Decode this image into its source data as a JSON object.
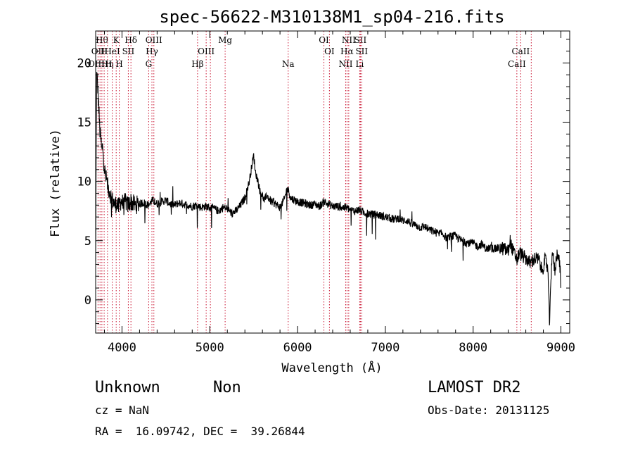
{
  "chart_data": {
    "type": "line",
    "title": "spec-56622-M310138M1_sp04-216.fits",
    "xlabel": "Wavelength (Å)",
    "ylabel": "Flux (relative)",
    "xlim": [
      3700,
      9100
    ],
    "ylim": [
      -2.8,
      22.7
    ],
    "xticks": [
      4000,
      5000,
      6000,
      7000,
      8000,
      9000
    ],
    "yticks": [
      0,
      5,
      10,
      15,
      20
    ],
    "grid": false,
    "series": [
      {
        "x": [
          3700,
          3710,
          3720,
          3730,
          3740,
          3750,
          3760,
          3770,
          3780,
          3790,
          3800,
          3820,
          3840,
          3860,
          3880,
          3900,
          3920,
          3940,
          3960,
          3980,
          4000,
          4020,
          4040,
          4060,
          4080,
          4100,
          4150,
          4200,
          4250,
          4300,
          4350,
          4400,
          4450,
          4500,
          4550,
          4600,
          4650,
          4700,
          4750,
          4800,
          4850,
          4900,
          4950,
          5000,
          5050,
          5100,
          5150,
          5200,
          5250,
          5300,
          5350,
          5400,
          5450,
          5480,
          5500,
          5520,
          5550,
          5570,
          5600,
          5620,
          5650,
          5700,
          5750,
          5800,
          5850,
          5880,
          5900,
          5920,
          5950,
          6000,
          6050,
          6100,
          6150,
          6200,
          6250,
          6300,
          6350,
          6400,
          6450,
          6500,
          6550,
          6600,
          6650,
          6700,
          6750,
          6800,
          6850,
          6900,
          6950,
          7000,
          7050,
          7100,
          7150,
          7200,
          7250,
          7300,
          7350,
          7400,
          7450,
          7500,
          7550,
          7600,
          7650,
          7700,
          7750,
          7800,
          7850,
          7900,
          7950,
          8000,
          8050,
          8100,
          8150,
          8200,
          8250,
          8300,
          8350,
          8400,
          8420,
          8450,
          8500,
          8530,
          8550,
          8600,
          8650,
          8700,
          8750,
          8780,
          8800,
          8820,
          8850,
          8870,
          8900,
          8930,
          8960,
          8990,
          9000
        ],
        "y": [
          3,
          19,
          18.5,
          17,
          15.5,
          14,
          13.5,
          12.5,
          13,
          12,
          11,
          10.2,
          9.5,
          9.2,
          8.5,
          8.3,
          8,
          8.2,
          7.8,
          8.3,
          8.3,
          7.9,
          8.4,
          8,
          8.1,
          8.3,
          8,
          8.1,
          8.2,
          8,
          8.4,
          8.1,
          8.3,
          8.4,
          8.1,
          8,
          8.2,
          8.1,
          8,
          7.9,
          8,
          7.8,
          7.9,
          7.8,
          7.7,
          7.5,
          7.8,
          7.7,
          7.3,
          7.5,
          8,
          8.6,
          10,
          11.4,
          12.2,
          10.8,
          10,
          9.2,
          8.8,
          8.4,
          8.8,
          8.3,
          8.1,
          7.8,
          8.5,
          9.4,
          9.2,
          8.6,
          8.5,
          8.3,
          8.2,
          8.1,
          8,
          8.1,
          7.9,
          8.3,
          8.1,
          7.9,
          7.9,
          7.8,
          7.8,
          7.6,
          7.5,
          7.6,
          7.4,
          7.3,
          7.2,
          7.2,
          7.1,
          7,
          6.9,
          6.8,
          6.9,
          6.7,
          6.7,
          6.4,
          6.3,
          6.1,
          6.2,
          5.9,
          5.8,
          5.6,
          5.6,
          5.2,
          5.4,
          5.4,
          5.1,
          4.9,
          4.8,
          4.8,
          4.5,
          4.7,
          4.3,
          4.4,
          4.3,
          4.4,
          4.3,
          4.1,
          5,
          4.2,
          3.4,
          4,
          3.8,
          3.5,
          3.1,
          3.5,
          3.4,
          2.5,
          2.8,
          3.4,
          2.8,
          -2,
          4.3,
          2.4,
          4.2,
          2.8,
          0.3
        ]
      }
    ],
    "line_markers": [
      {
        "wl": 3727,
        "row": 1,
        "label": "OII"
      },
      {
        "wl": 3750,
        "row": 2,
        "label": "OIIIH"
      },
      {
        "wl": 3771,
        "row": 0,
        "label": "Hθ"
      },
      {
        "wl": 3797,
        "row": 1,
        "label": "H"
      },
      {
        "wl": 3835,
        "row": 2,
        "label": "Hη"
      },
      {
        "wl": 3889,
        "row": 1,
        "label": "HeI"
      },
      {
        "wl": 3934,
        "row": 0,
        "label": "K"
      },
      {
        "wl": 3969,
        "row": 2,
        "label": "H"
      },
      {
        "wl": 4072,
        "row": 1,
        "label": "SII"
      },
      {
        "wl": 4102,
        "row": 0,
        "label": "Hδ"
      },
      {
        "wl": 4304,
        "row": 2,
        "label": "G"
      },
      {
        "wl": 4341,
        "row": 1,
        "label": "Hγ"
      },
      {
        "wl": 4363,
        "row": 0,
        "label": "OIII"
      },
      {
        "wl": 4861,
        "row": 2,
        "label": "Hβ"
      },
      {
        "wl": 4959,
        "row": 1,
        "label": "OIII"
      },
      {
        "wl": 5007,
        "row": 1,
        "label": ""
      },
      {
        "wl": 5175,
        "row": 0,
        "label": "Mg"
      },
      {
        "wl": 5893,
        "row": 2,
        "label": "Na"
      },
      {
        "wl": 6300,
        "row": 0,
        "label": "OI"
      },
      {
        "wl": 6363,
        "row": 1,
        "label": "OI"
      },
      {
        "wl": 6548,
        "row": 2,
        "label": "NII"
      },
      {
        "wl": 6563,
        "row": 1,
        "label": "Hα"
      },
      {
        "wl": 6583,
        "row": 0,
        "label": "NII"
      },
      {
        "wl": 6708,
        "row": 2,
        "label": "Li"
      },
      {
        "wl": 6716,
        "row": 0,
        "label": "SII"
      },
      {
        "wl": 6731,
        "row": 1,
        "label": "SII"
      },
      {
        "wl": 8498,
        "row": 2,
        "label": "CaII"
      },
      {
        "wl": 8542,
        "row": 1,
        "label": "CaII"
      },
      {
        "wl": 8662,
        "row": 1,
        "label": ""
      }
    ]
  },
  "info": {
    "object_class": "Unknown",
    "object_subclass": "Non",
    "survey": "LAMOST DR2",
    "cz": "cz = NaN",
    "obs_date": "Obs-Date: 20131125",
    "coords": "RA =  16.09742, DEC =  39.26844"
  }
}
